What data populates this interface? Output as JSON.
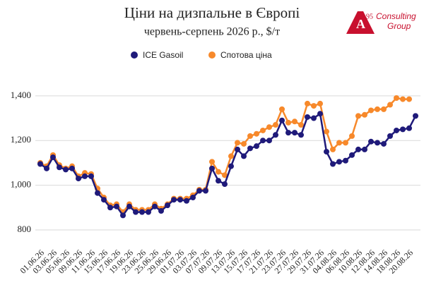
{
  "logo": {
    "mark": "A",
    "sup": "95",
    "line1": "Consulting",
    "line2": "Group"
  },
  "chart_data": {
    "type": "line",
    "title": "Ціни на дизпальне в Європі",
    "subtitle": "червень-серпень 2026 р., $/т",
    "categories": [
      "01.06.26",
      null,
      "03.06.26",
      null,
      "05.06.26",
      null,
      "09.06.26",
      null,
      "11.06.26",
      null,
      "15.06.26",
      null,
      "17.06.26",
      null,
      "19.06.26",
      null,
      "23.06.26",
      null,
      "25.06.26",
      null,
      "29.06.26",
      null,
      "01.07.26",
      null,
      "03.07.26",
      null,
      "07.07.26",
      null,
      "09.07.26",
      null,
      "13.07.26",
      null,
      "15.07.26",
      null,
      "17.07.26",
      null,
      "21.07.26",
      null,
      "23.07.26",
      null,
      "27.07.26",
      null,
      "29.07.26",
      null,
      "31.07.26",
      null,
      "04.08.26",
      null,
      "06.08.26",
      null,
      "10.08.26",
      null,
      "12.08.26",
      null,
      "14.08.26",
      null,
      "18.08.26",
      null,
      "20.08.26",
      null
    ],
    "series": [
      {
        "name": "ICE Gasoil",
        "color": "#1f1a7a",
        "values": [
          1095,
          1075,
          1125,
          1080,
          1070,
          1075,
          1030,
          1040,
          1040,
          965,
          935,
          900,
          905,
          865,
          905,
          880,
          880,
          880,
          905,
          885,
          910,
          935,
          935,
          930,
          945,
          975,
          975,
          1075,
          1020,
          1005,
          1085,
          1160,
          1130,
          1165,
          1175,
          1200,
          1200,
          1225,
          1290,
          1235,
          1235,
          1225,
          1305,
          1300,
          1320,
          1150,
          1095,
          1105,
          1110,
          1135,
          1160,
          1160,
          1195,
          1190,
          1185,
          1220,
          1245,
          1250,
          1255,
          1310
        ]
      },
      {
        "name": "Спотова ціна",
        "color": "#f7892b",
        "values": [
          1100,
          1085,
          1135,
          1090,
          1075,
          1085,
          1040,
          1055,
          1050,
          985,
          945,
          910,
          915,
          880,
          915,
          890,
          890,
          890,
          915,
          895,
          915,
          940,
          940,
          940,
          955,
          980,
          980,
          1105,
          1060,
          1045,
          1130,
          1190,
          1185,
          1220,
          1230,
          1245,
          1260,
          1270,
          1340,
          1280,
          1285,
          1270,
          1365,
          1355,
          1365,
          1240,
          1160,
          1190,
          1190,
          1220,
          1310,
          1315,
          1335,
          1340,
          1340,
          1360,
          1390,
          1385,
          1385,
          null
        ]
      }
    ],
    "ylim": [
      740,
      1450
    ],
    "yticks": [
      {
        "value": 800,
        "label": "800"
      },
      {
        "value": 1000,
        "label": "1,000"
      },
      {
        "value": 1200,
        "label": "1,200"
      },
      {
        "value": 1400,
        "label": "1,400"
      }
    ],
    "grid": true,
    "legend": "top"
  }
}
